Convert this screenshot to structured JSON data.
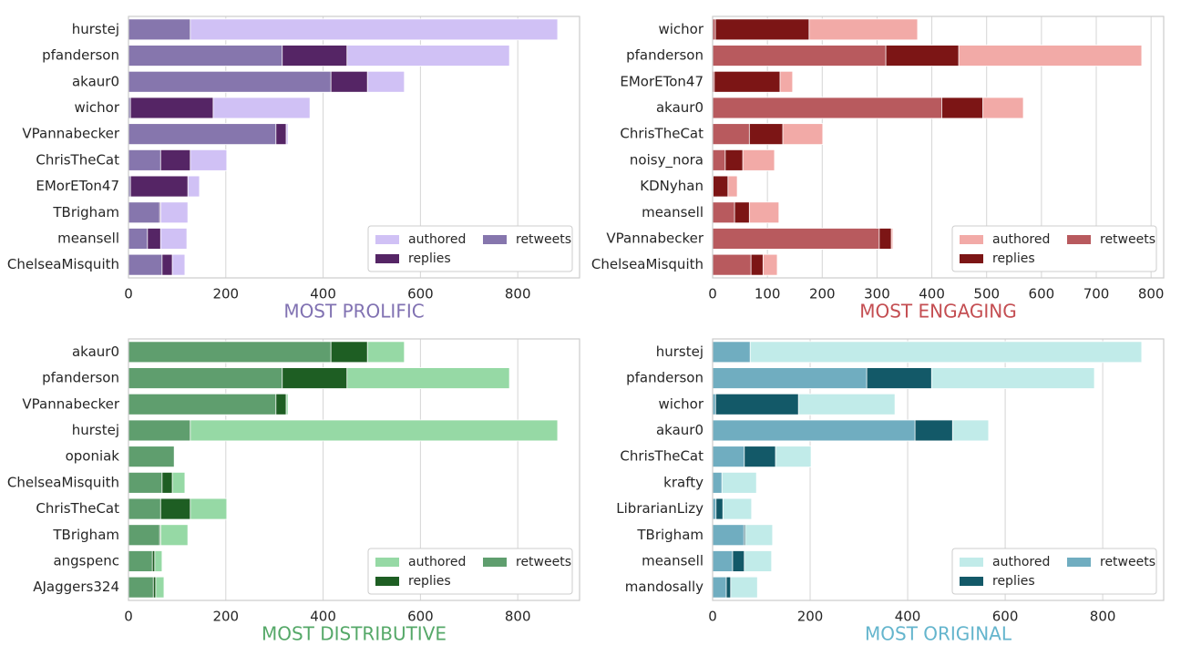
{
  "chart_data": [
    {
      "type": "bar",
      "orientation": "horizontal",
      "xlabel": "MOST PROLIFIC",
      "xlabel_color": "#8172b2",
      "categories": [
        "hurstej",
        "pfanderson",
        "akaur0",
        "wichor",
        "VPannabecker",
        "ChrisTheCat",
        "EMorETon47",
        "TBrigham",
        "meansell",
        "ChelseaMisquith"
      ],
      "series": [
        {
          "name": "authored",
          "color": "#d0c1f5",
          "values": [
            882,
            783,
            567,
            373,
            328,
            202,
            146,
            122,
            120,
            116
          ]
        },
        {
          "name": "replies",
          "color": "#552565",
          "values": [
            2,
            449,
            491,
            174,
            324,
            127,
            122,
            66,
            66,
            90
          ]
        },
        {
          "name": "retweets",
          "color": "#8676ad",
          "values": [
            127,
            316,
            416,
            4,
            303,
            66,
            4,
            64,
            39,
            69
          ]
        }
      ],
      "xlim": [
        0,
        927
      ],
      "xticks": [
        0,
        200,
        400,
        600,
        800
      ],
      "grid": true,
      "legend": "lower right"
    },
    {
      "type": "bar",
      "orientation": "horizontal",
      "xlabel": "MOST ENGAGING",
      "xlabel_color": "#c44e52",
      "categories": [
        "wichor",
        "pfanderson",
        "EMorETon47",
        "akaur0",
        "ChrisTheCat",
        "noisy_nora",
        "KDNyhan",
        "meansell",
        "VPannabecker",
        "ChelseaMisquith"
      ],
      "series": [
        {
          "name": "authored",
          "color": "#f2aaa7",
          "values": [
            374,
            783,
            146,
            567,
            201,
            113,
            45,
            121,
            329,
            118
          ]
        },
        {
          "name": "replies",
          "color": "#7c1515",
          "values": [
            176,
            449,
            123,
            493,
            128,
            55,
            28,
            67,
            326,
            92
          ]
        },
        {
          "name": "retweets",
          "color": "#b85a5e",
          "values": [
            5,
            316,
            3,
            418,
            67,
            23,
            1,
            40,
            304,
            70
          ]
        }
      ],
      "xlim": [
        0,
        823
      ],
      "xticks": [
        0,
        100,
        200,
        300,
        400,
        500,
        600,
        700,
        800
      ],
      "grid": true,
      "legend": "lower right"
    },
    {
      "type": "bar",
      "orientation": "horizontal",
      "xlabel": "MOST DISTRIBUTIVE",
      "xlabel_color": "#55a868",
      "categories": [
        "akaur0",
        "pfanderson",
        "VPannabecker",
        "hurstej",
        "oponiak",
        "ChelseaMisquith",
        "ChrisTheCat",
        "TBrigham",
        "angspenc",
        "AJaggers324"
      ],
      "series": [
        {
          "name": "authored",
          "color": "#96d9a5",
          "values": [
            567,
            783,
            328,
            882,
            94,
            116,
            202,
            122,
            69,
            73
          ]
        },
        {
          "name": "replies",
          "color": "#1e5e23",
          "values": [
            491,
            449,
            324,
            2,
            0,
            90,
            127,
            66,
            54,
            56
          ]
        },
        {
          "name": "retweets",
          "color": "#5f9e6e",
          "values": [
            416,
            316,
            303,
            127,
            94,
            69,
            66,
            64,
            49,
            51
          ]
        }
      ],
      "xlim": [
        0,
        927
      ],
      "xticks": [
        0,
        200,
        400,
        600,
        800
      ],
      "grid": true,
      "legend": "lower right"
    },
    {
      "type": "bar",
      "orientation": "horizontal",
      "xlabel": "MOST ORIGINAL",
      "xlabel_color": "#64b5cd",
      "categories": [
        "hurstej",
        "pfanderson",
        "wichor",
        "akaur0",
        "ChrisTheCat",
        "krafty",
        "LibrarianLizy",
        "TBrigham",
        "meansell",
        "mandosally"
      ],
      "series": [
        {
          "name": "authored",
          "color": "#c1ebe9",
          "values": [
            880,
            783,
            374,
            566,
            202,
            90,
            80,
            123,
            121,
            92
          ]
        },
        {
          "name": "replies",
          "color": "#135968",
          "values": [
            2,
            449,
            176,
            492,
            129,
            0,
            21,
            67,
            65,
            37
          ]
        },
        {
          "name": "retweets",
          "color": "#70adc0",
          "values": [
            77,
            316,
            6,
            415,
            65,
            19,
            7,
            64,
            41,
            28
          ]
        }
      ],
      "xlim": [
        0,
        925
      ],
      "xticks": [
        0,
        200,
        400,
        600,
        800
      ],
      "grid": true,
      "legend": "lower right"
    }
  ]
}
